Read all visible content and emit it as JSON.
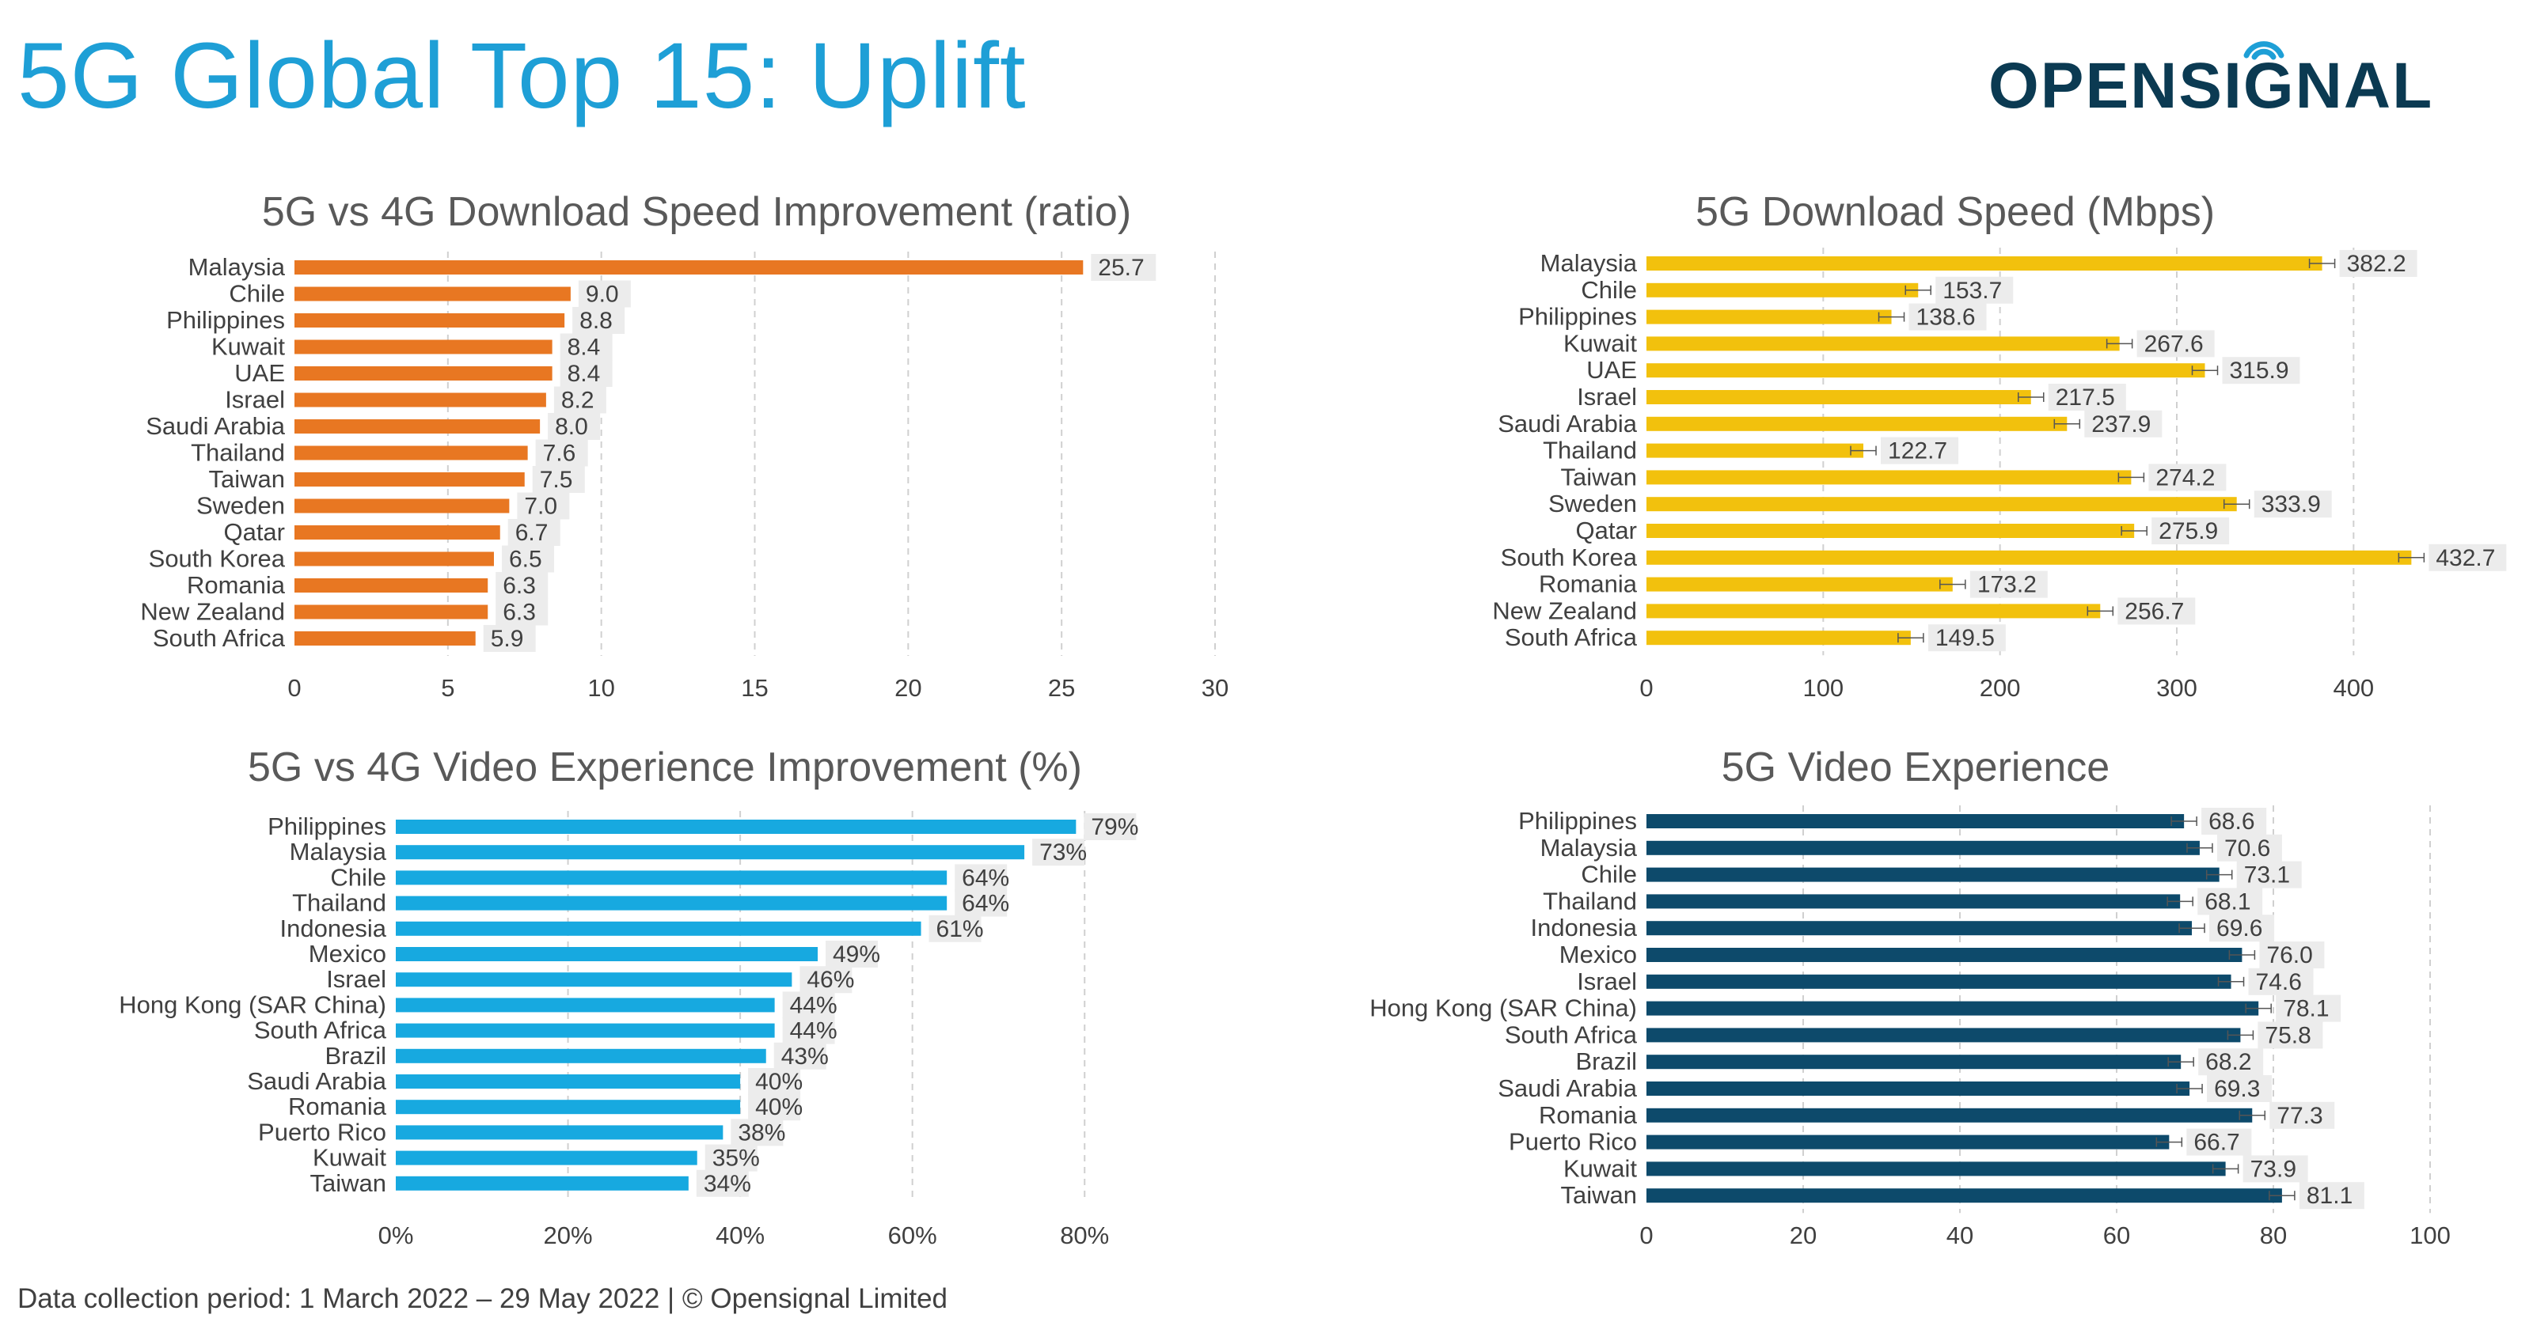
{
  "title": "5G Global Top 15: Uplift",
  "logo_text": "OPENSIGNAL",
  "footer": "Data collection period: 1 March 2022 – 29 May 2022 |  © Opensignal Limited",
  "chart_data": [
    {
      "id": "dl-improvement",
      "type": "bar",
      "orientation": "horizontal",
      "title": "5G vs 4G Download Speed Improvement (ratio)",
      "color": "#e87722",
      "categories": [
        "Malaysia",
        "Chile",
        "Philippines",
        "Kuwait",
        "UAE",
        "Israel",
        "Saudi Arabia",
        "Thailand",
        "Taiwan",
        "Sweden",
        "Qatar",
        "South Korea",
        "Romania",
        "New Zealand",
        "South Africa"
      ],
      "values": [
        25.7,
        9.0,
        8.8,
        8.4,
        8.4,
        8.2,
        8.0,
        7.6,
        7.5,
        7.0,
        6.7,
        6.5,
        6.3,
        6.3,
        5.9
      ],
      "value_labels": [
        "25.7",
        "9.0",
        "8.8",
        "8.4",
        "8.4",
        "8.2",
        "8.0",
        "7.6",
        "7.5",
        "7.0",
        "6.7",
        "6.5",
        "6.3",
        "6.3",
        "5.9"
      ],
      "xlim": [
        0,
        30
      ],
      "ticks": [
        0,
        5,
        10,
        15,
        20,
        25,
        30
      ],
      "tick_labels": [
        "0",
        "5",
        "10",
        "15",
        "20",
        "25",
        "30"
      ],
      "error_bars": false,
      "grid": "vertical-dashed"
    },
    {
      "id": "dl-speed",
      "type": "bar",
      "orientation": "horizontal",
      "title": "5G Download Speed (Mbps)",
      "color": "#f2c10d",
      "categories": [
        "Malaysia",
        "Chile",
        "Philippines",
        "Kuwait",
        "UAE",
        "Israel",
        "Saudi Arabia",
        "Thailand",
        "Taiwan",
        "Sweden",
        "Qatar",
        "South Korea",
        "Romania",
        "New Zealand",
        "South Africa"
      ],
      "values": [
        382.2,
        153.7,
        138.6,
        267.6,
        315.9,
        217.5,
        237.9,
        122.7,
        274.2,
        333.9,
        275.9,
        432.7,
        173.2,
        256.7,
        149.5
      ],
      "value_labels": [
        "382.2",
        "153.7",
        "138.6",
        "267.6",
        "315.9",
        "217.5",
        "237.9",
        "122.7",
        "274.2",
        "333.9",
        "275.9",
        "432.7",
        "173.2",
        "256.7",
        "149.5"
      ],
      "xlim": [
        0,
        450
      ],
      "ticks": [
        0,
        100,
        200,
        300,
        400
      ],
      "tick_labels": [
        "0",
        "100",
        "200",
        "300",
        "400"
      ],
      "error_bars": true,
      "grid": "vertical-dashed"
    },
    {
      "id": "video-improvement",
      "type": "bar",
      "orientation": "horizontal",
      "title": "5G vs 4G Video Experience Improvement (%)",
      "color": "#17a9e0",
      "categories": [
        "Philippines",
        "Malaysia",
        "Chile",
        "Thailand",
        "Indonesia",
        "Mexico",
        "Israel",
        "Hong Kong (SAR China)",
        "South Africa",
        "Brazil",
        "Saudi Arabia",
        "Romania",
        "Puerto Rico",
        "Kuwait",
        "Taiwan"
      ],
      "values": [
        79,
        73,
        64,
        64,
        61,
        49,
        46,
        44,
        44,
        43,
        40,
        40,
        38,
        35,
        34
      ],
      "value_labels": [
        "79%",
        "73%",
        "64%",
        "64%",
        "61%",
        "49%",
        "46%",
        "44%",
        "44%",
        "43%",
        "40%",
        "40%",
        "38%",
        "35%",
        "34%"
      ],
      "xlim": [
        0,
        90
      ],
      "ticks": [
        0,
        20,
        40,
        60,
        80
      ],
      "tick_labels": [
        "0%",
        "20%",
        "40%",
        "60%",
        "80%"
      ],
      "error_bars": false,
      "grid": "vertical-dashed"
    },
    {
      "id": "video-experience",
      "type": "bar",
      "orientation": "horizontal",
      "title": "5G Video Experience",
      "color": "#0d4a6b",
      "categories": [
        "Philippines",
        "Malaysia",
        "Chile",
        "Thailand",
        "Indonesia",
        "Mexico",
        "Israel",
        "Hong Kong (SAR China)",
        "South Africa",
        "Brazil",
        "Saudi Arabia",
        "Romania",
        "Puerto Rico",
        "Kuwait",
        "Taiwan"
      ],
      "values": [
        68.6,
        70.6,
        73.1,
        68.1,
        69.6,
        76.0,
        74.6,
        78.1,
        75.8,
        68.2,
        69.3,
        77.3,
        66.7,
        73.9,
        81.1
      ],
      "value_labels": [
        "68.6",
        "70.6",
        "73.1",
        "68.1",
        "69.6",
        "76.0",
        "74.6",
        "78.1",
        "75.8",
        "68.2",
        "69.3",
        "77.3",
        "66.7",
        "73.9",
        "81.1"
      ],
      "xlim": [
        0,
        100
      ],
      "ticks": [
        0,
        20,
        40,
        60,
        80,
        100
      ],
      "tick_labels": [
        "0",
        "20",
        "40",
        "60",
        "80",
        "100"
      ],
      "error_bars": true,
      "grid": "vertical-dashed"
    }
  ]
}
